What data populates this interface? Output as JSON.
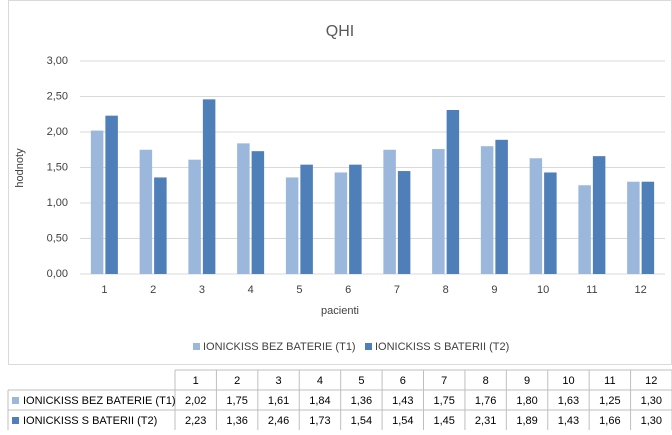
{
  "chart_data": {
    "type": "bar",
    "title": "QHI",
    "x_label": "pacienti",
    "y_label": "hodnoty",
    "categories": [
      "1",
      "2",
      "3",
      "4",
      "5",
      "6",
      "7",
      "8",
      "9",
      "10",
      "11",
      "12"
    ],
    "series": [
      {
        "name": "IONICKISS BEZ BATERIE (T1)",
        "color": "#9cb7dc",
        "values": [
          2.02,
          1.75,
          1.61,
          1.84,
          1.36,
          1.43,
          1.75,
          1.76,
          1.8,
          1.63,
          1.25,
          1.3
        ],
        "value_labels": [
          "2,02",
          "1,75",
          "1,61",
          "1,84",
          "1,36",
          "1,43",
          "1,75",
          "1,76",
          "1,80",
          "1,63",
          "1,25",
          "1,30"
        ]
      },
      {
        "name": "IONICKISS S BATERII (T2)",
        "color": "#4f7fb8",
        "values": [
          2.23,
          1.36,
          2.46,
          1.73,
          1.54,
          1.54,
          1.45,
          2.31,
          1.89,
          1.43,
          1.66,
          1.3
        ],
        "value_labels": [
          "2,23",
          "1,36",
          "2,46",
          "1,73",
          "1,54",
          "1,54",
          "1,45",
          "2,31",
          "1,89",
          "1,43",
          "1,66",
          "1,30"
        ]
      }
    ],
    "ylim": [
      0,
      3
    ],
    "yticks": [
      {
        "value": 0,
        "label": "0,00"
      },
      {
        "value": 0.5,
        "label": "0,50"
      },
      {
        "value": 1,
        "label": "1,00"
      },
      {
        "value": 1.5,
        "label": "1,50"
      },
      {
        "value": 2,
        "label": "2,00"
      },
      {
        "value": 2.5,
        "label": "2,50"
      },
      {
        "value": 3,
        "label": "3,00"
      }
    ],
    "grid": true,
    "legend": "bottom"
  }
}
